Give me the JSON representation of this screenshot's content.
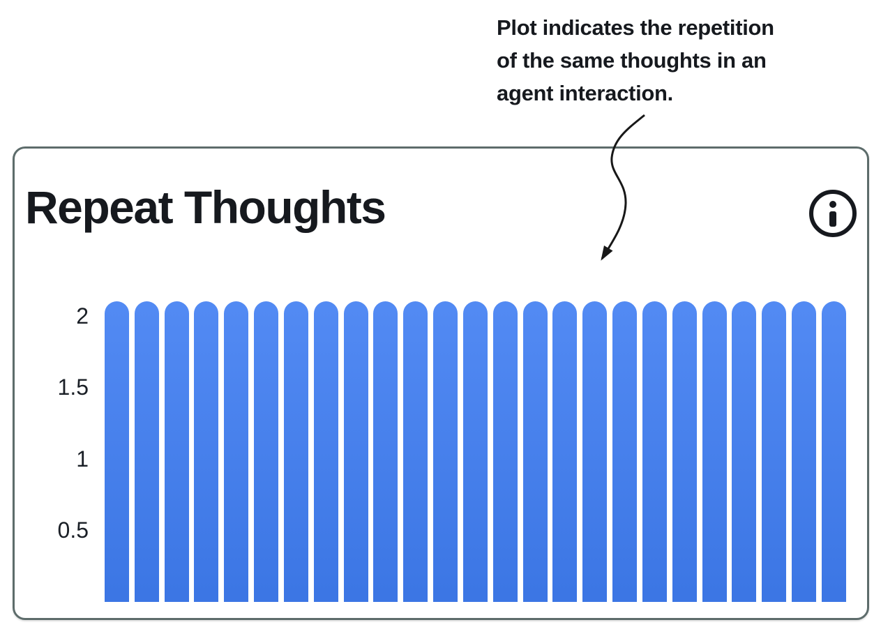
{
  "annotation": {
    "lines": [
      "Plot indicates the repetition",
      "of the same thoughts in an",
      "agent interaction."
    ]
  },
  "card": {
    "title": "Repeat Thoughts"
  },
  "chart_data": {
    "type": "bar",
    "title": "Repeat Thoughts",
    "values": [
      2.1,
      2.1,
      2.1,
      2.1,
      2.1,
      2.1,
      2.1,
      2.1,
      2.1,
      2.1,
      2.1,
      2.1,
      2.1,
      2.1,
      2.1,
      2.1,
      2.1,
      2.1,
      2.1,
      2.1,
      2.1,
      2.1,
      2.1,
      2.1,
      2.1
    ],
    "bar_count": 25,
    "x_tick_labels": [],
    "yticks": [
      0.5,
      1,
      1.5,
      2
    ],
    "ytick_labels": [
      "0.5",
      "1",
      "1.5",
      "2"
    ],
    "ylim": [
      0,
      2.1
    ],
    "xlabel": "",
    "ylabel": "",
    "grid": false,
    "legend_position": "none",
    "bar_color": "#3f7df2"
  },
  "colors": {
    "background": "#ffffff",
    "card_border": "#5d6c6b",
    "text": "#16191e",
    "bar": "#3f7df2",
    "arrow": "#181818"
  }
}
